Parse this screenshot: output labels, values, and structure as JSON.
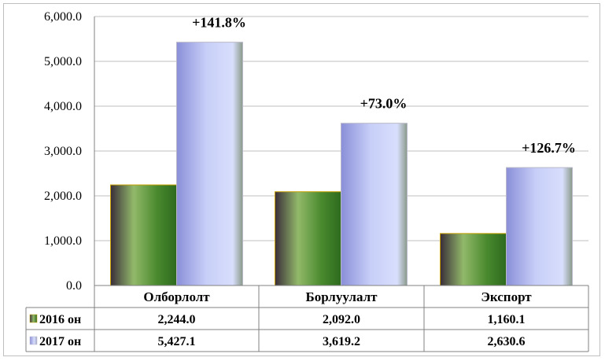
{
  "chart_data": {
    "type": "bar",
    "title": "",
    "xlabel": "",
    "ylabel": "",
    "categories": [
      "Олборлолт",
      "Борлуулалт",
      "Экспорт"
    ],
    "series": [
      {
        "name": "2016 он",
        "values": [
          2244.0,
          2092.0,
          1160.1
        ],
        "value_labels": [
          "2,244.0",
          "2,092.0",
          "1,160.1"
        ]
      },
      {
        "name": "2017 он",
        "values": [
          5427.1,
          3619.2,
          2630.6
        ],
        "value_labels": [
          "5,427.1",
          "3,619.2",
          "2,630.6"
        ]
      }
    ],
    "annotations": [
      "+141.8%",
      "+73.0%",
      "+126.7%"
    ],
    "ylim": [
      0,
      6000
    ],
    "yticks": [
      0,
      1000,
      2000,
      3000,
      4000,
      5000,
      6000
    ],
    "ytick_labels": [
      "0.0",
      "1,000.0",
      "2,000.0",
      "3,000.0",
      "4,000.0",
      "5,000.0",
      "6,000.0"
    ],
    "grid": true,
    "legend": "data-table",
    "colors": {
      "series_2016": "#4e8a2e",
      "series_2017": "#9aa6e6",
      "grid": "#bfbfbf",
      "axis": "#808080"
    }
  }
}
